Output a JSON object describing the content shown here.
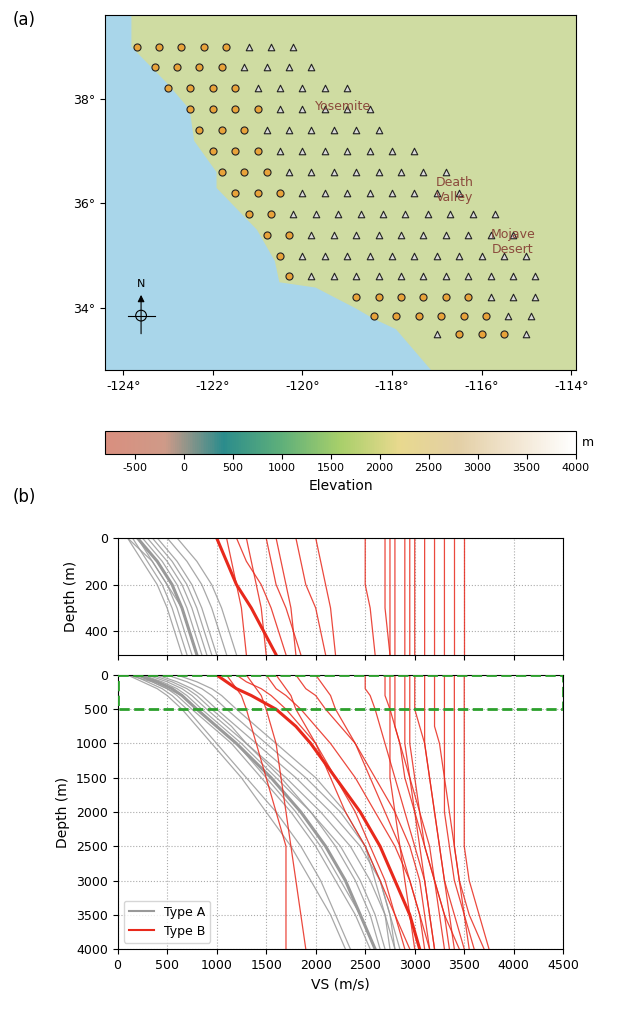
{
  "chart_data": [
    {
      "type": "map",
      "panel_label": "(a)",
      "xlim": [
        -124.4,
        -113.9
      ],
      "xticks": [
        {
          "value": -124,
          "label": "-124°"
        },
        {
          "value": -122,
          "label": "-122°"
        },
        {
          "value": -120,
          "label": "-120°"
        },
        {
          "value": -118,
          "label": "-118°"
        },
        {
          "value": -116,
          "label": "-116°"
        },
        {
          "value": -114,
          "label": "-114°"
        }
      ],
      "ylim": [
        32.8,
        39.6
      ],
      "yticks": [
        {
          "value": 34,
          "label": "34°"
        },
        {
          "value": 36,
          "label": "36°"
        },
        {
          "value": 38,
          "label": "38°"
        }
      ],
      "land": {
        "color": "#cfdca2",
        "lon": [
          -124.4,
          -123.8,
          -123.8,
          -123.0,
          -122.5,
          -122.4,
          -121.9,
          -121.9,
          -121.0,
          -120.6,
          -120.5,
          -119.7,
          -118.8,
          -118.4,
          -117.9,
          -117.3,
          -117.1,
          -113.9,
          -113.9,
          -124.4
        ],
        "lat": [
          39.6,
          39.6,
          39.0,
          38.3,
          37.8,
          37.2,
          36.6,
          36.3,
          35.5,
          34.9,
          34.5,
          34.4,
          34.0,
          33.8,
          33.6,
          33.0,
          32.8,
          32.8,
          39.6,
          39.6
        ]
      },
      "series": [
        {
          "marker": "triangle",
          "color": "#d9d9d9",
          "rows": [
            {
              "lat": 39.0,
              "lon": [
                -121.2,
                -120.7,
                -120.2
              ]
            },
            {
              "lat": 38.6,
              "lon": [
                -121.3,
                -120.8,
                -120.3,
                -119.8
              ]
            },
            {
              "lat": 38.2,
              "lon": [
                -121.0,
                -120.5,
                -120.0,
                -119.5,
                -119.0
              ]
            },
            {
              "lat": 37.8,
              "lon": [
                -120.5,
                -120.0,
                -119.5,
                -119.0,
                -118.5
              ]
            },
            {
              "lat": 37.4,
              "lon": [
                -120.8,
                -120.3,
                -119.8,
                -119.3,
                -118.8,
                -118.3
              ]
            },
            {
              "lat": 37.0,
              "lon": [
                -120.5,
                -120.0,
                -119.5,
                -119.0,
                -118.5,
                -118.0,
                -117.5
              ]
            },
            {
              "lat": 36.6,
              "lon": [
                -120.3,
                -119.8,
                -119.3,
                -118.8,
                -118.3,
                -117.8,
                -117.3,
                -116.8
              ]
            },
            {
              "lat": 36.2,
              "lon": [
                -120.0,
                -119.5,
                -119.0,
                -118.5,
                -118.0,
                -117.5,
                -117.0,
                -116.5
              ]
            },
            {
              "lat": 35.8,
              "lon": [
                -120.2,
                -119.7,
                -119.2,
                -118.7,
                -118.2,
                -117.7,
                -117.2,
                -116.7,
                -116.2,
                -115.7
              ]
            },
            {
              "lat": 35.4,
              "lon": [
                -119.8,
                -119.3,
                -118.8,
                -118.3,
                -117.8,
                -117.3,
                -116.8,
                -116.3,
                -115.8,
                -115.3
              ]
            },
            {
              "lat": 35.0,
              "lon": [
                -120.0,
                -119.5,
                -119.0,
                -118.5,
                -118.0,
                -117.5,
                -117.0,
                -116.5,
                -116.0,
                -115.5,
                -115.0
              ]
            },
            {
              "lat": 34.6,
              "lon": [
                -119.8,
                -119.3,
                -118.8,
                -118.3,
                -117.8,
                -117.3,
                -116.8,
                -116.3,
                -115.8,
                -115.3,
                -114.8
              ]
            },
            {
              "lat": 34.2,
              "lon": [
                -115.8,
                -115.3,
                -114.8
              ]
            },
            {
              "lat": 33.85,
              "lon": [
                -115.4,
                -114.9
              ]
            },
            {
              "lat": 33.5,
              "lon": [
                -117.0,
                -115.0
              ]
            }
          ]
        },
        {
          "marker": "circle",
          "color": "#e8a33a",
          "rows": [
            {
              "lat": 39.0,
              "lon": [
                -123.7,
                -123.2,
                -122.7,
                -122.2,
                -121.7
              ]
            },
            {
              "lat": 38.6,
              "lon": [
                -123.3,
                -122.8,
                -122.3,
                -121.8
              ]
            },
            {
              "lat": 38.2,
              "lon": [
                -123.0,
                -122.5,
                -122.0,
                -121.5
              ]
            },
            {
              "lat": 37.8,
              "lon": [
                -122.5,
                -122.0,
                -121.5,
                -121.0
              ]
            },
            {
              "lat": 37.4,
              "lon": [
                -122.3,
                -121.8,
                -121.3
              ]
            },
            {
              "lat": 37.0,
              "lon": [
                -122.0,
                -121.5,
                -121.0
              ]
            },
            {
              "lat": 36.6,
              "lon": [
                -121.8,
                -121.3,
                -120.8
              ]
            },
            {
              "lat": 36.2,
              "lon": [
                -121.5,
                -121.0,
                -120.5
              ]
            },
            {
              "lat": 35.8,
              "lon": [
                -121.2,
                -120.7
              ]
            },
            {
              "lat": 35.4,
              "lon": [
                -120.8,
                -120.3
              ]
            },
            {
              "lat": 35.0,
              "lon": [
                -120.5
              ]
            },
            {
              "lat": 34.6,
              "lon": [
                -120.3
              ]
            },
            {
              "lat": 34.2,
              "lon": [
                -118.8,
                -118.3,
                -117.8,
                -117.3,
                -116.8,
                -116.3
              ]
            },
            {
              "lat": 33.85,
              "lon": [
                -118.4,
                -117.9,
                -117.4,
                -116.9,
                -116.4,
                -115.9
              ]
            },
            {
              "lat": 33.5,
              "lon": [
                -116.5,
                -116.0,
                -115.5
              ]
            }
          ]
        }
      ],
      "annotations": [
        {
          "text": "Yosemite",
          "x": -119.1,
          "y": 37.85
        },
        {
          "text": "Death\nValley",
          "x": -116.6,
          "y": 36.25
        },
        {
          "text": "Mojave\nDesert",
          "x": -115.3,
          "y": 35.25
        },
        {
          "text": "N",
          "x": -123.6,
          "y": 34.45
        }
      ],
      "colorbar": {
        "label": "Elevation",
        "unit": "m",
        "range": [
          -800,
          4000
        ],
        "ticks": [
          -500,
          0,
          500,
          1000,
          1500,
          2000,
          2500,
          3000,
          3500,
          4000
        ]
      }
    },
    {
      "type": "line",
      "panel_label": "(b)",
      "x_label": "VS (m/s)",
      "y_label": "Depth (m)",
      "xlim": [
        0,
        4500
      ],
      "xticks": [
        0,
        500,
        1000,
        1500,
        2000,
        2500,
        3000,
        3500,
        4000,
        4500
      ],
      "ylim": [
        4000,
        0
      ],
      "yticks": [
        0,
        500,
        1000,
        1500,
        2000,
        2500,
        3000,
        3500,
        4000
      ],
      "grid": true,
      "legend": "lower left",
      "zoom": {
        "ylim": [
          500,
          0
        ],
        "yticks": [
          0,
          200,
          400
        ],
        "y_label": "Depth (m)",
        "tick_labels": "y"
      },
      "y": [
        0,
        100,
        200,
        300,
        500,
        750,
        1000,
        1500,
        2000,
        2500,
        3000,
        3500,
        4000
      ],
      "series": [
        {
          "name": "Type A",
          "color": "#999999",
          "profiles": [
            [
              200,
              400,
              550,
              650,
              800,
              1000,
              1200,
              1550,
              1850,
              2100,
              2300,
              2450,
              2600
            ],
            [
              100,
              350,
              500,
              600,
              750,
              950,
              1150,
              1450,
              1750,
              2000,
              2200,
              2400,
              2550
            ],
            [
              300,
              500,
              650,
              750,
              900,
              1100,
              1300,
              1700,
              2050,
              2350,
              2550,
              2700,
              2800
            ],
            [
              150,
              300,
              450,
              550,
              700,
              850,
              1000,
              1300,
              1600,
              1850,
              2050,
              2200,
              2350
            ],
            [
              400,
              600,
              750,
              850,
              1000,
              1200,
              1400,
              1800,
              2150,
              2450,
              2650,
              2750,
              2850
            ],
            [
              250,
              450,
              600,
              700,
              850,
              1050,
              1250,
              1600,
              1950,
              2250,
              2450,
              2600,
              2700
            ],
            [
              100,
              250,
              400,
              500,
              650,
              800,
              950,
              1250,
              1500,
              1750,
              1950,
              2150,
              2300
            ],
            [
              500,
              700,
              850,
              950,
              1100,
              1300,
              1500,
              1900,
              2250,
              2500,
              2650,
              2750,
              2800
            ],
            [
              200,
              350,
              500,
              650,
              800,
              1000,
              1200,
              1500,
              1800,
              2050,
              2250,
              2450,
              2600
            ],
            [
              600,
              800,
              950,
              1050,
              1200,
              1400,
              1600,
              2000,
              2300,
              2500,
              2600,
              2700,
              2750
            ],
            [
              350,
              550,
              700,
              800,
              950,
              1150,
              1300,
              1650,
              1950,
              2200,
              2400,
              2550,
              2650
            ]
          ]
        },
        {
          "name": "Type B",
          "color": "#e8291c",
          "profiles": [
            [
              1000,
              1100,
              1200,
              1350,
              1600,
              1800,
              1950,
              2200,
              2450,
              2650,
              2800,
              2950,
              3050
            ],
            [
              2800,
              2800,
              2800,
              2800,
              2800,
              2800,
              2850,
              2900,
              3000,
              3100,
              3200,
              3300,
              3350
            ],
            [
              3500,
              3500,
              3500,
              3500,
              3500,
              3500,
              3500,
              3500,
              3500,
              3500,
              3550,
              3650,
              3750
            ],
            [
              2700,
              2700,
              2700,
              2700,
              2750,
              2800,
              2850,
              2950,
              3050,
              3150,
              3200,
              3250,
              3300
            ],
            [
              3000,
              3000,
              3000,
              3000,
              3000,
              3050,
              3100,
              3150,
              3200,
              3250,
              3300,
              3350,
              3400
            ],
            [
              3300,
              3300,
              3300,
              3300,
              3300,
              3300,
              3300,
              3300,
              3300,
              3350,
              3400,
              3500,
              3600
            ],
            [
              1500,
              1550,
              1600,
              1700,
              1850,
              2000,
              2150,
              2400,
              2600,
              2800,
              2950,
              3050,
              3150
            ],
            [
              2500,
              2500,
              2500,
              2550,
              2600,
              2650,
              2700,
              2800,
              2900,
              3000,
              3100,
              3150,
              3200
            ],
            [
              1200,
              1300,
              1450,
              1550,
              1700,
              1850,
              2000,
              2200,
              2400,
              2550,
              2700,
              2800,
              2900
            ],
            [
              2900,
              2900,
              2900,
              2900,
              2900,
              2900,
              2900,
              2950,
              3000,
              3050,
              3100,
              3150,
              3200
            ],
            [
              1100,
              1150,
              1200,
              1250,
              1300,
              1350,
              1400,
              1500,
              1600,
              1700,
              1700,
              1700,
              1700
            ],
            [
              3200,
              3200,
              3200,
              3200,
              3200,
              3200,
              3250,
              3300,
              3350,
              3400,
              3450,
              3500,
              3550
            ],
            [
              2000,
              2050,
              2100,
              2150,
              2200,
              2300,
              2400,
              2550,
              2700,
              2850,
              2950,
              3050,
              3100
            ],
            [
              3100,
              3100,
              3100,
              3100,
              3100,
              3100,
              3100,
              3150,
              3200,
              3250,
              3300,
              3400,
              3500
            ],
            [
              1600,
              1650,
              1700,
              1750,
              1800,
              1900,
              2000,
              2150,
              2300,
              2500,
              2650,
              2800,
              2950
            ],
            [
              2750,
              2750,
              2750,
              2750,
              2750,
              2750,
              2750,
              2750,
              2800,
              2850,
              2900,
              2950,
              3000
            ],
            [
              1300,
              1350,
              1400,
              1450,
              1500,
              1550,
              1600,
              1650,
              1700,
              1750,
              1800,
              1850,
              1900
            ],
            [
              3400,
              3400,
              3400,
              3400,
              3400,
              3400,
              3400,
              3400,
              3400,
              3400,
              3450,
              3550,
              3700
            ],
            [
              2950,
              2950,
              2950,
              2950,
              2950,
              2950,
              2950,
              3000,
              3050,
              3100,
              3200,
              3300,
              3450
            ],
            [
              1800,
              1850,
              1900,
              2000,
              2100,
              2250,
              2400,
              2600,
              2800,
              2950,
              3050,
              3100,
              3150
            ]
          ]
        }
      ]
    }
  ]
}
